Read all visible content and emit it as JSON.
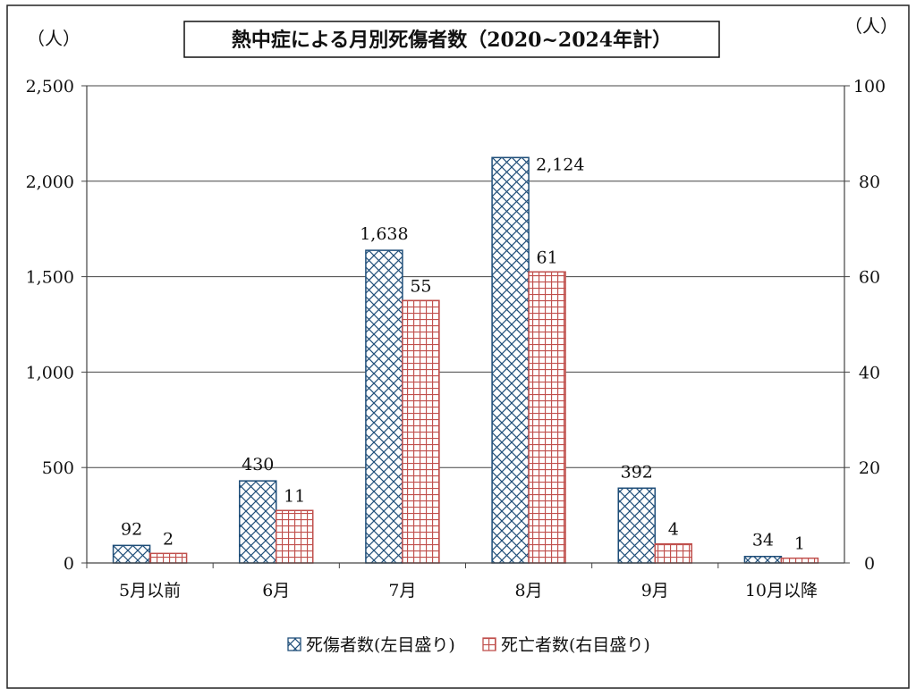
{
  "chart_data": {
    "type": "bar",
    "title": "熱中症による月別死傷者数（2020~2024年計）",
    "left_unit": "（人）",
    "right_unit": "（人）",
    "categories": [
      "5月以前",
      "6月",
      "7月",
      "8月",
      "9月",
      "10月以降"
    ],
    "series": [
      {
        "name": "死傷者数(左目盛り)",
        "axis": "left",
        "values": [
          92,
          430,
          1638,
          2124,
          392,
          34
        ],
        "labels": [
          "92",
          "430",
          "1,638",
          "2,124",
          "392",
          "34"
        ],
        "color": "#1f4e79",
        "pattern": "diagonal-cross"
      },
      {
        "name": "死亡者数(右目盛り)",
        "axis": "right",
        "values": [
          2,
          11,
          55,
          61,
          4,
          1
        ],
        "labels": [
          "2",
          "11",
          "55",
          "61",
          "4",
          "1"
        ],
        "color": "#c0504d",
        "pattern": "grid"
      }
    ],
    "left_axis": {
      "ylim": [
        0,
        2500
      ],
      "ticks": [
        "0",
        "500",
        "1,000",
        "1,500",
        "2,000",
        "2,500"
      ]
    },
    "right_axis": {
      "ylim": [
        0,
        100
      ],
      "ticks": [
        "0",
        "20",
        "40",
        "60",
        "80",
        "100"
      ]
    },
    "grid": true,
    "legend_position": "bottom"
  }
}
